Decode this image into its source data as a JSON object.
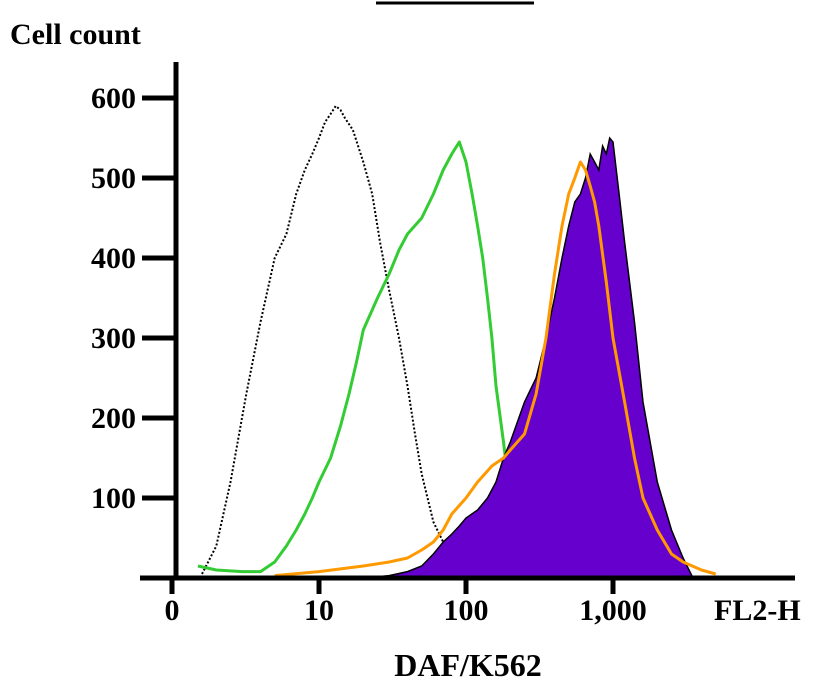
{
  "chart_data": {
    "type": "area",
    "title": "",
    "top_label": "Cell count",
    "xlabel": "DAF/K562",
    "x_axis_unit": "FL2-H",
    "x_scale": "log",
    "xlim": [
      1,
      6000
    ],
    "ylim": [
      0,
      640
    ],
    "y_ticks": [
      {
        "value": 100,
        "label": "100"
      },
      {
        "value": 200,
        "label": "200"
      },
      {
        "value": 300,
        "label": "300"
      },
      {
        "value": 400,
        "label": "400"
      },
      {
        "value": 500,
        "label": "500"
      },
      {
        "value": 600,
        "label": "600"
      }
    ],
    "x_ticks": [
      {
        "value": 1,
        "label": "0"
      },
      {
        "value": 10,
        "label": "10"
      },
      {
        "value": 100,
        "label": "100"
      },
      {
        "value": 1000,
        "label": "1,000"
      }
    ],
    "colors": {
      "control": "#000000",
      "green": "#33cc33",
      "orange": "#ff9900",
      "purple": "#6600cc"
    },
    "series": [
      {
        "style": "dotted-line",
        "color": "#000000",
        "x": [
          1.6,
          2.0,
          2.5,
          3.2,
          4.0,
          5.0,
          6.0,
          7.0,
          8.0,
          9.0,
          10.0,
          11.0,
          12.0,
          13.0,
          14.0,
          15.0,
          17.0,
          20.0,
          23.0,
          26.0,
          30.0,
          35.0,
          40.0,
          45.0,
          50.0,
          60.0,
          70.0,
          80.0,
          100.0,
          130.0,
          160.0,
          200.0,
          250.0,
          300.0,
          400.0,
          500.0,
          600.0,
          700.0,
          800.0,
          1000.0,
          1500.0,
          2000.0
        ],
        "y": [
          5,
          40,
          120,
          230,
          320,
          400,
          430,
          480,
          510,
          530,
          550,
          570,
          580,
          590,
          585,
          575,
          560,
          520,
          480,
          420,
          360,
          300,
          240,
          180,
          130,
          70,
          45,
          35,
          30,
          25,
          18,
          12,
          10,
          8,
          10,
          14,
          18,
          12,
          10,
          8,
          5,
          3
        ]
      },
      {
        "style": "line",
        "color": "#33cc33",
        "x": [
          1.5,
          2.0,
          3.0,
          4.0,
          5.0,
          6.0,
          7.0,
          8.0,
          9.0,
          10.0,
          12.0,
          14.0,
          16.0,
          18.0,
          20.0,
          25.0,
          30.0,
          35.0,
          40.0,
          50.0,
          60.0,
          70.0,
          80.0,
          90.0,
          100.0,
          110.0,
          120.0,
          130.0,
          140.0,
          150.0,
          160.0,
          180.0,
          200.0,
          250.0,
          300.0,
          350.0,
          400.0,
          500.0,
          600.0,
          800.0,
          1000.0,
          1500.0,
          2000.0,
          3000.0
        ],
        "y": [
          15,
          10,
          8,
          8,
          20,
          40,
          60,
          80,
          100,
          120,
          150,
          190,
          230,
          270,
          310,
          350,
          380,
          410,
          430,
          450,
          480,
          510,
          530,
          545,
          520,
          480,
          440,
          400,
          350,
          300,
          240,
          170,
          100,
          60,
          45,
          35,
          20,
          10,
          15,
          12,
          15,
          12,
          12,
          10
        ]
      },
      {
        "style": "filled-area",
        "color": "#6600cc",
        "x": [
          20.0,
          30.0,
          40.0,
          50.0,
          60.0,
          70.0,
          80.0,
          90.0,
          100.0,
          120.0,
          140.0,
          160.0,
          180.0,
          200.0,
          250.0,
          300.0,
          350.0,
          400.0,
          450.0,
          500.0,
          550.0,
          600.0,
          650.0,
          700.0,
          750.0,
          800.0,
          850.0,
          900.0,
          950.0,
          1000.0,
          1100.0,
          1200.0,
          1400.0,
          1600.0,
          2000.0,
          2500.0,
          3000.0,
          3500.0
        ],
        "y": [
          0,
          3,
          8,
          15,
          30,
          45,
          55,
          65,
          75,
          85,
          100,
          120,
          150,
          170,
          220,
          250,
          300,
          350,
          400,
          440,
          470,
          480,
          500,
          530,
          520,
          510,
          540,
          530,
          550,
          545,
          480,
          420,
          320,
          220,
          120,
          60,
          25,
          0
        ]
      },
      {
        "style": "line",
        "color": "#ff9900",
        "x": [
          5.0,
          10.0,
          20.0,
          30.0,
          40.0,
          50.0,
          60.0,
          70.0,
          80.0,
          100.0,
          120.0,
          150.0,
          180.0,
          200.0,
          250.0,
          300.0,
          350.0,
          400.0,
          450.0,
          500.0,
          550.0,
          600.0,
          650.0,
          700.0,
          750.0,
          800.0,
          900.0,
          1000.0,
          1200.0,
          1400.0,
          1600.0,
          2000.0,
          2500.0,
          3000.0,
          4000.0,
          5000.0
        ],
        "y": [
          3,
          8,
          15,
          20,
          25,
          35,
          45,
          60,
          80,
          100,
          120,
          140,
          150,
          160,
          180,
          230,
          300,
          380,
          440,
          480,
          500,
          520,
          510,
          490,
          470,
          440,
          370,
          300,
          220,
          150,
          100,
          60,
          30,
          20,
          10,
          5
        ]
      }
    ]
  }
}
